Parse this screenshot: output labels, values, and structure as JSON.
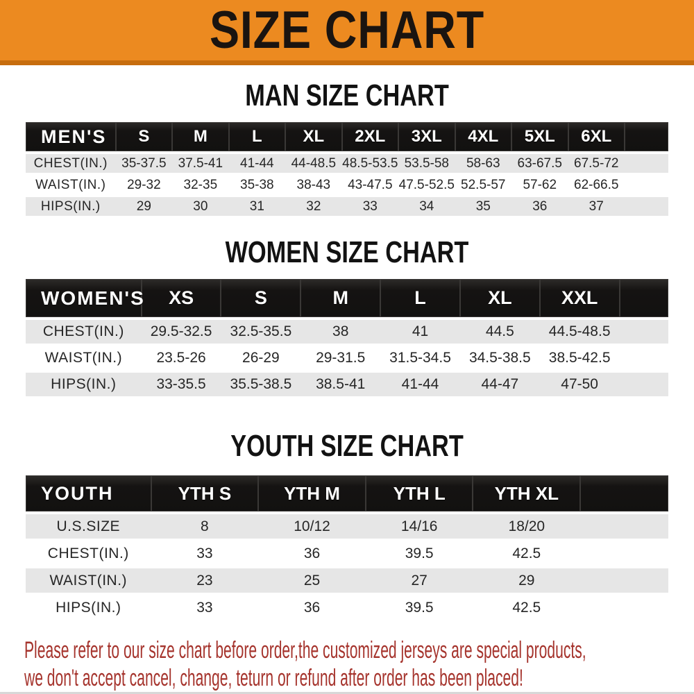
{
  "banner": {
    "title": "SIZE CHART",
    "bg_color": "#ec8a20",
    "edge_color": "#c76d0e",
    "text_color": "#1a1410"
  },
  "sections": [
    {
      "id": "men",
      "title": "MAN SIZE CHART",
      "header_label": "MEN'S",
      "columns": [
        "S",
        "M",
        "L",
        "XL",
        "2XL",
        "3XL",
        "4XL",
        "5XL",
        "6XL"
      ],
      "rows": [
        {
          "label": "CHEST(IN.)",
          "values": [
            "35-37.5",
            "37.5-41",
            "41-44",
            "44-48.5",
            "48.5-53.5",
            "53.5-58",
            "58-63",
            "63-67.5",
            "67.5-72"
          ]
        },
        {
          "label": "WAIST(IN.)",
          "values": [
            "29-32",
            "32-35",
            "35-38",
            "38-43",
            "43-47.5",
            "47.5-52.5",
            "52.5-57",
            "57-62",
            "62-66.5"
          ]
        },
        {
          "label": "HIPS(IN.)",
          "values": [
            "29",
            "30",
            "31",
            "32",
            "33",
            "34",
            "35",
            "36",
            "37"
          ]
        }
      ]
    },
    {
      "id": "women",
      "title": "WOMEN SIZE CHART",
      "header_label": "WOMEN'S",
      "columns": [
        "XS",
        "S",
        "M",
        "L",
        "XL",
        "XXL"
      ],
      "rows": [
        {
          "label": "CHEST(IN.)",
          "values": [
            "29.5-32.5",
            "32.5-35.5",
            "38",
            "41",
            "44.5",
            "44.5-48.5"
          ]
        },
        {
          "label": "WAIST(IN.)",
          "values": [
            "23.5-26",
            "26-29",
            "29-31.5",
            "31.5-34.5",
            "34.5-38.5",
            "38.5-42.5"
          ]
        },
        {
          "label": "HIPS(IN.)",
          "values": [
            "33-35.5",
            "35.5-38.5",
            "38.5-41",
            "41-44",
            "44-47",
            "47-50"
          ]
        }
      ]
    },
    {
      "id": "youth",
      "title": "YOUTH SIZE CHART",
      "header_label": "YOUTH",
      "columns": [
        "YTH S",
        "YTH M",
        "YTH L",
        "YTH XL"
      ],
      "rows": [
        {
          "label": "U.S.SIZE",
          "values": [
            "8",
            "10/12",
            "14/16",
            "18/20"
          ]
        },
        {
          "label": "CHEST(IN.)",
          "values": [
            "33",
            "36",
            "39.5",
            "42.5"
          ]
        },
        {
          "label": "WAIST(IN.)",
          "values": [
            "23",
            "25",
            "27",
            "29"
          ]
        },
        {
          "label": "HIPS(IN.)",
          "values": [
            "33",
            "36",
            "39.5",
            "42.5"
          ]
        }
      ]
    }
  ],
  "footer": {
    "line1": "Please refer to our size chart before order,the customized jerseys are special products,",
    "line2": "we don't accept cancel, change, teturn or refund after order has been placed!",
    "text_color": "#a5332c"
  },
  "colors": {
    "header_bar_bg": "#151312",
    "row_alt_bg": "#e6e6e6",
    "title_color": "#121212"
  }
}
